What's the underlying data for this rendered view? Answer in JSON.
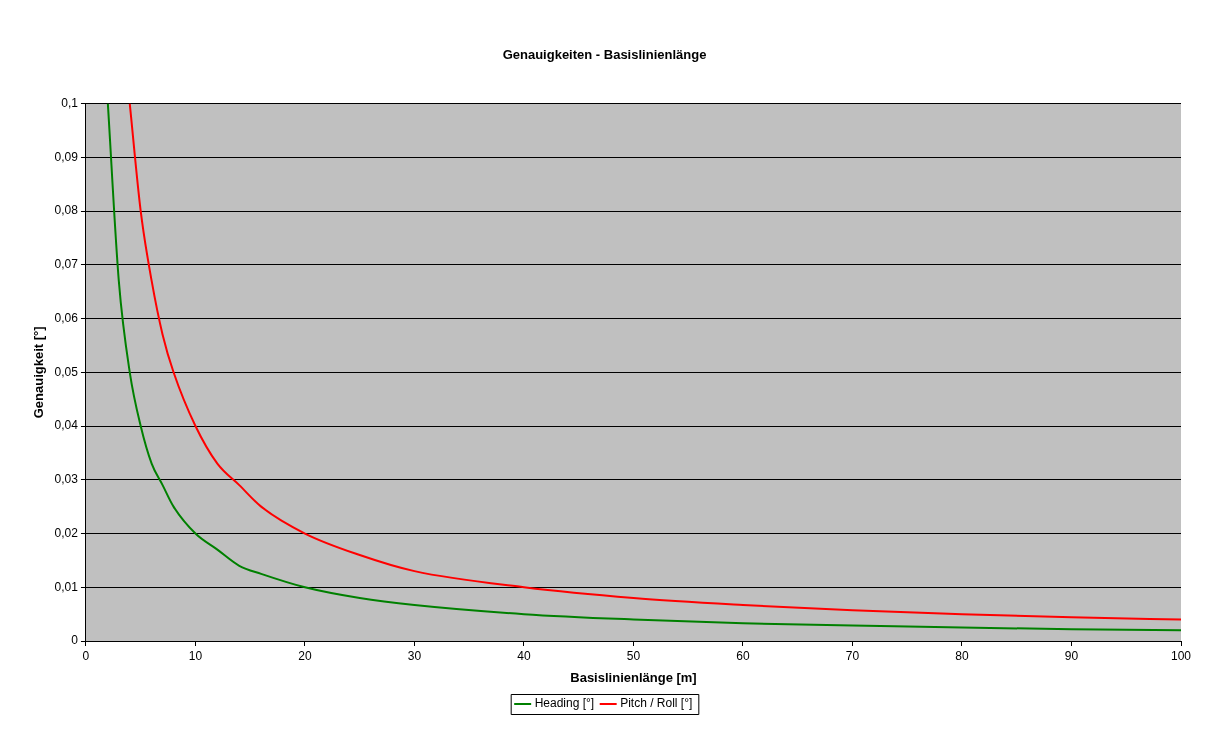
{
  "chart_data": {
    "type": "line",
    "title": "Genauigkeiten - Basislinienlänge",
    "xlabel": "Basislinienlänge [m]",
    "ylabel": "Genauigkeit [°]",
    "series": [
      {
        "name": "Heading [°]",
        "color": "#008000",
        "x": [
          2,
          3,
          4,
          5,
          6,
          7,
          8,
          10,
          12,
          14,
          16,
          20,
          25,
          30,
          40,
          50,
          60,
          70,
          80,
          90,
          100
        ],
        "values": [
          0.1,
          0.067,
          0.05,
          0.04,
          0.033,
          0.029,
          0.025,
          0.02,
          0.017,
          0.014,
          0.0125,
          0.01,
          0.008,
          0.0067,
          0.005,
          0.004,
          0.0033,
          0.0029,
          0.0025,
          0.0022,
          0.002
        ]
      },
      {
        "name": "Pitch / Roll [°]",
        "color": "#ff0000",
        "x": [
          4,
          5,
          6,
          7,
          8,
          10,
          12,
          14,
          16,
          20,
          25,
          30,
          40,
          50,
          60,
          70,
          80,
          90,
          100
        ],
        "values": [
          0.1,
          0.08,
          0.067,
          0.057,
          0.05,
          0.04,
          0.033,
          0.029,
          0.025,
          0.02,
          0.016,
          0.013,
          0.01,
          0.008,
          0.0067,
          0.0057,
          0.005,
          0.0044,
          0.004
        ]
      }
    ],
    "xlim": [
      0,
      100
    ],
    "xticks": [
      0,
      10,
      20,
      30,
      40,
      50,
      60,
      70,
      80,
      90,
      100
    ],
    "ylim": [
      0,
      0.1
    ],
    "yticks": [
      0,
      {
        "value": 0.01,
        "label": "0,01"
      },
      {
        "value": 0.02,
        "label": "0,02"
      },
      {
        "value": 0.03,
        "label": "0,03"
      },
      {
        "value": 0.04,
        "label": "0,04"
      },
      {
        "value": 0.05,
        "label": "0,05"
      },
      {
        "value": 0.06,
        "label": "0,06"
      },
      {
        "value": 0.07,
        "label": "0,07"
      },
      {
        "value": 0.08,
        "label": "0,08"
      },
      {
        "value": 0.09,
        "label": "0,09"
      },
      {
        "value": 0.1,
        "label": "0,1"
      }
    ],
    "grid": "y",
    "legend": "bottom",
    "marker": "none",
    "line_style": "solid"
  }
}
